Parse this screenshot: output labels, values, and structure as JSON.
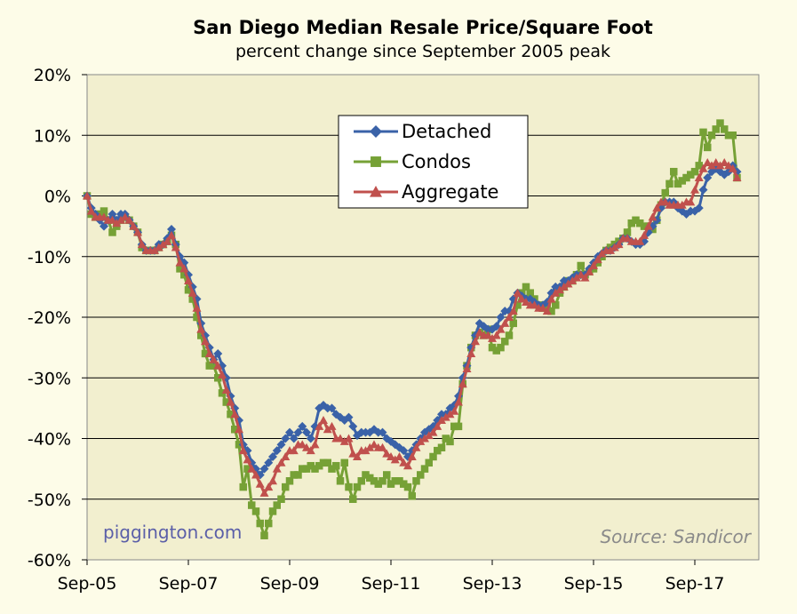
{
  "chart_data": {
    "type": "line",
    "title": "San Diego Median Resale Price/Square Foot",
    "subtitle": "percent change since September 2005 peak",
    "x_tick_labels": [
      "Sep-05",
      "Sep-07",
      "Sep-09",
      "Sep-11",
      "Sep-13",
      "Sep-15",
      "Sep-17"
    ],
    "y_tick_labels": [
      "20%",
      "10%",
      "0%",
      "-10%",
      "-20%",
      "-30%",
      "-40%",
      "-50%",
      "-60%"
    ],
    "ylim": [
      -60,
      20
    ],
    "xlim": [
      "2005-09",
      "2018-03"
    ],
    "x_unit": "month",
    "grid": "horizontal",
    "legend_position": "top-center",
    "watermark": "piggington.com",
    "source": "Source: Sandicor",
    "series": [
      {
        "name": "Detached",
        "color": "#3a62a8",
        "marker": "diamond",
        "x_start": "2005-09",
        "values": [
          0,
          -2,
          -3,
          -4,
          -5,
          -4,
          -3,
          -4,
          -3,
          -3,
          -4,
          -5,
          -6,
          -8,
          -9,
          -9,
          -9,
          -8,
          -8,
          -7,
          -5.5,
          -8,
          -10,
          -11,
          -13,
          -15,
          -17,
          -21,
          -23,
          -25,
          -27,
          -26,
          -28,
          -30,
          -33,
          -35,
          -37,
          -41,
          -42,
          -44,
          -45,
          -46,
          -45,
          -44,
          -43,
          -42,
          -41,
          -40,
          -39,
          -40,
          -39,
          -38,
          -39,
          -40,
          -38,
          -35,
          -34.5,
          -35,
          -35,
          -36,
          -36.5,
          -37,
          -36.5,
          -38,
          -39.5,
          -39,
          -39,
          -39,
          -38.5,
          -39,
          -39,
          -40,
          -40.5,
          -41,
          -41.5,
          -42,
          -43,
          -42,
          -41,
          -40,
          -39,
          -38.5,
          -38,
          -37,
          -36,
          -36,
          -35,
          -34.5,
          -33,
          -30,
          -28,
          -25,
          -23,
          -21,
          -21.5,
          -22,
          -22,
          -21.5,
          -20,
          -19,
          -19,
          -17,
          -16,
          -16.5,
          -17,
          -17,
          -17.5,
          -18,
          -18,
          -17.5,
          -16,
          -15,
          -15,
          -14,
          -14,
          -13.5,
          -13,
          -13,
          -13,
          -12,
          -11,
          -10,
          -9.5,
          -9,
          -9,
          -8.5,
          -8,
          -7,
          -7,
          -7.5,
          -8,
          -8,
          -7.5,
          -6,
          -5,
          -4,
          -2,
          -1,
          -1,
          -1,
          -2,
          -2.5,
          -3,
          -2.5,
          -2.5,
          -2,
          1,
          3,
          4,
          4.5,
          4,
          3.5,
          4,
          5,
          4
        ],
        "values_note": "series ends at -3 to +4 range near Mar-18"
      },
      {
        "name": "Condos",
        "color": "#76a136",
        "marker": "square",
        "x_start": "2005-09",
        "values": [
          0,
          -3,
          -3.5,
          -3,
          -2.5,
          -4,
          -6,
          -5,
          -4,
          -3.5,
          -4,
          -5,
          -6,
          -8.5,
          -9,
          -9,
          -9,
          -8.5,
          -8,
          -7.5,
          -6.5,
          -8,
          -12,
          -13,
          -15.5,
          -17,
          -20,
          -23,
          -26,
          -28,
          -28,
          -30,
          -32.5,
          -34,
          -36,
          -38.5,
          -41,
          -48,
          -45,
          -51,
          -52,
          -54,
          -56,
          -54,
          -52,
          -51,
          -50,
          -48,
          -47,
          -46,
          -46,
          -45,
          -45,
          -44.5,
          -45,
          -44.5,
          -44,
          -44,
          -45,
          -44.5,
          -47,
          -44,
          -48,
          -50,
          -48,
          -47,
          -46,
          -46.5,
          -47,
          -47.5,
          -47,
          -46,
          -47.5,
          -47,
          -47,
          -47.5,
          -48,
          -49.5,
          -47,
          -46,
          -45,
          -44,
          -43,
          -42,
          -41.5,
          -40,
          -40.5,
          -38,
          -38,
          -31,
          -28,
          -25,
          -23,
          -22.5,
          -23,
          -22,
          -25,
          -25.5,
          -25,
          -24,
          -23,
          -21,
          -18,
          -16,
          -15,
          -16,
          -17,
          -18,
          -18.5,
          -18,
          -19,
          -18,
          -16,
          -15,
          -14,
          -14,
          -13,
          -11.5,
          -13,
          -12.5,
          -12,
          -11,
          -10,
          -9,
          -8.5,
          -8,
          -7.5,
          -7,
          -6,
          -4.5,
          -4,
          -4.5,
          -5,
          -5,
          -5.5,
          -4,
          -1.5,
          0.5,
          2,
          4,
          2,
          2.5,
          3,
          3.5,
          4,
          5,
          10.5,
          8,
          10,
          11,
          12,
          11,
          10,
          10,
          3
        ],
        "values_note": "condos peak near +12% in 2017-18"
      },
      {
        "name": "Aggregate",
        "color": "#c0504d",
        "marker": "triangle",
        "x_start": "2005-09",
        "values": [
          0,
          -2.5,
          -3.5,
          -3.5,
          -3.5,
          -4,
          -4,
          -4.5,
          -4,
          -3.5,
          -4,
          -5,
          -6,
          -8,
          -9,
          -9,
          -9,
          -8.5,
          -8,
          -7.5,
          -6.5,
          -8.5,
          -11,
          -12,
          -14,
          -16,
          -18.5,
          -22,
          -24,
          -26,
          -27,
          -28,
          -29.5,
          -32,
          -34,
          -36,
          -38.5,
          -42,
          -43.5,
          -45,
          -46,
          -47.5,
          -49,
          -48,
          -47,
          -45,
          -44,
          -43,
          -42,
          -42,
          -41,
          -41,
          -41.5,
          -42,
          -41,
          -38,
          -37,
          -38.5,
          -38,
          -40,
          -40,
          -40.5,
          -40,
          -42.5,
          -43,
          -42,
          -42,
          -41.5,
          -41,
          -41.5,
          -41.5,
          -42.5,
          -43,
          -43.5,
          -43,
          -44,
          -44.5,
          -43,
          -41.5,
          -40.5,
          -40,
          -39.5,
          -39,
          -38,
          -37,
          -36.5,
          -36,
          -35.5,
          -34,
          -31,
          -28.5,
          -26,
          -24,
          -22.5,
          -23,
          -23,
          -23.5,
          -23,
          -22,
          -21,
          -20,
          -19,
          -16,
          -17,
          -17.5,
          -18,
          -18,
          -18.5,
          -18.5,
          -19,
          -17,
          -16,
          -15.5,
          -15,
          -14.5,
          -14,
          -13.5,
          -13,
          -13.5,
          -12.5,
          -11.5,
          -10.5,
          -9.5,
          -9,
          -9,
          -8.5,
          -8,
          -7,
          -7,
          -7.5,
          -7.5,
          -7.5,
          -6.5,
          -5,
          -3.5,
          -2,
          -1,
          -1,
          -1.5,
          -1.5,
          -1.5,
          -1.5,
          -1,
          -1,
          1,
          3,
          4.5,
          5.5,
          5,
          5.5,
          5,
          5.5,
          5,
          4.5,
          3
        ]
      }
    ]
  }
}
